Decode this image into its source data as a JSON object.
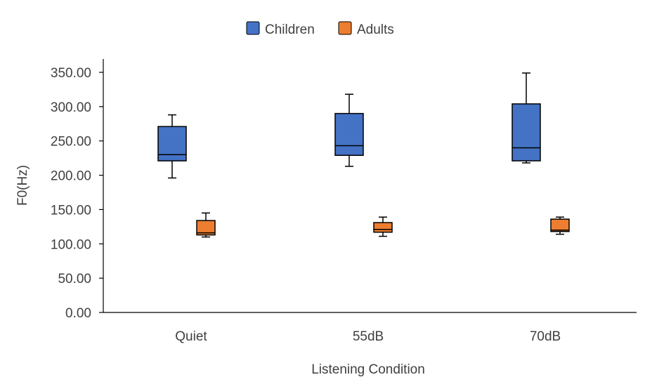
{
  "chart_data": {
    "type": "boxplot",
    "xlabel": "Listening  Condition",
    "ylabel": "F0(Hz)",
    "ylim": [
      0,
      350
    ],
    "y_ticks": [
      "0.00",
      "50.00",
      "100.00",
      "150.00",
      "200.00",
      "250.00",
      "300.00",
      "350.00"
    ],
    "y_tick_values": [
      0,
      50,
      100,
      150,
      200,
      250,
      300,
      350
    ],
    "categories": [
      "Quiet",
      "55dB",
      "70dB"
    ],
    "grid": false,
    "legend_position": "top",
    "series": [
      {
        "name": "Children",
        "color": "#4472C4",
        "boxes": [
          {
            "min": 196,
            "q1": 221,
            "median": 230,
            "q3": 271,
            "max": 288
          },
          {
            "min": 213,
            "q1": 229,
            "median": 243,
            "q3": 290,
            "max": 318
          },
          {
            "min": 218,
            "q1": 221,
            "median": 240,
            "q3": 304,
            "max": 349
          }
        ]
      },
      {
        "name": "Adults",
        "color": "#ED7D31",
        "boxes": [
          {
            "min": 110,
            "q1": 113,
            "median": 116,
            "q3": 134,
            "max": 145
          },
          {
            "min": 111,
            "q1": 117,
            "median": 121,
            "q3": 131,
            "max": 139
          },
          {
            "min": 114,
            "q1": 118,
            "median": 120,
            "q3": 136,
            "max": 139
          }
        ]
      }
    ]
  }
}
